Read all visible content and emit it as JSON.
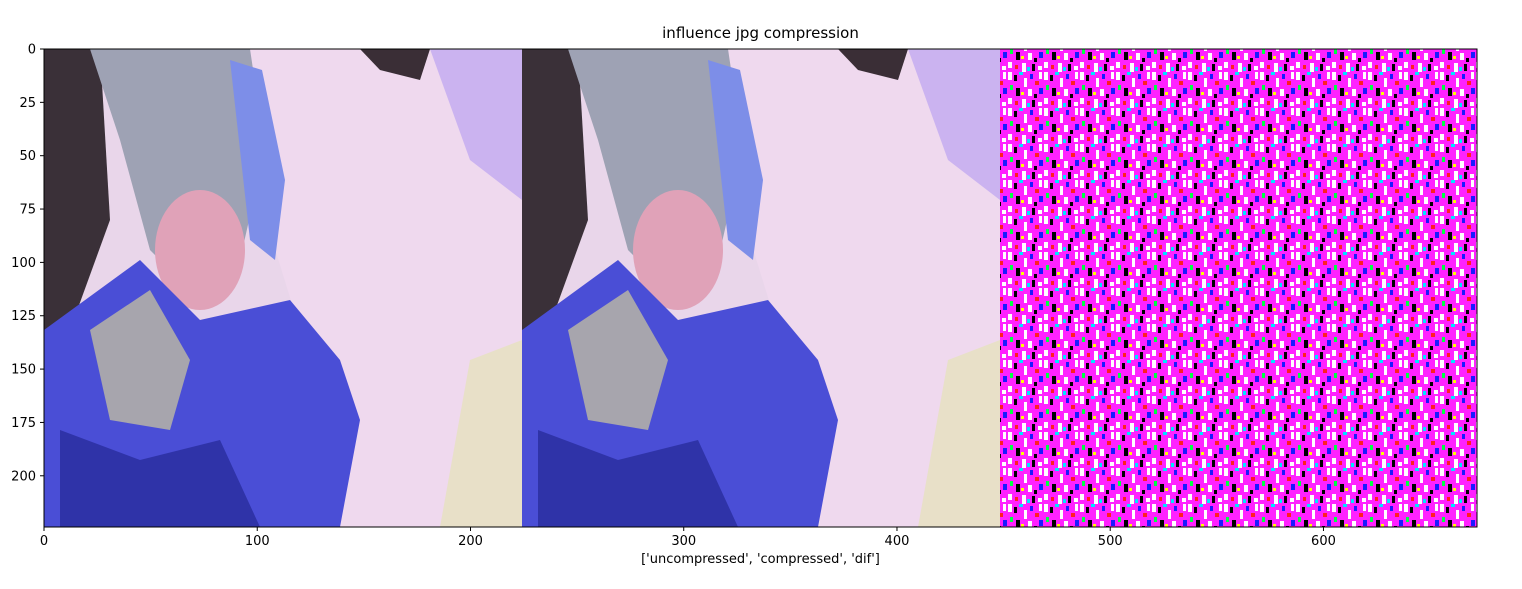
{
  "chart_data": {
    "type": "image",
    "title": "influence jpg compression",
    "xlabel": "['uncompressed', 'compressed', 'dif']",
    "ylabel": "",
    "xlim": [
      0,
      672
    ],
    "ylim": [
      224,
      0
    ],
    "xticks": [
      0,
      100,
      200,
      300,
      400,
      500,
      600
    ],
    "yticks": [
      0,
      25,
      50,
      75,
      100,
      125,
      150,
      175,
      200
    ],
    "panels": [
      {
        "x_start": 0,
        "x_end": 224
      },
      {
        "x_start": 224,
        "x_end": 448
      },
      {
        "x_start": 448,
        "x_end": 672
      }
    ],
    "colors": {
      "skin": "#e7cfe3",
      "face": "#f2dcf0",
      "lavender": "#c7a8ee",
      "hair": "#3a2e36",
      "jacket": "#4a4ed6",
      "jacket_dark": "#2c2f9a",
      "grey": "#9d9aa2",
      "dark": "#2b2930",
      "noise_magenta": "#ff22ff",
      "noise_white": "#ffffff",
      "noise_black": "#000000"
    }
  }
}
